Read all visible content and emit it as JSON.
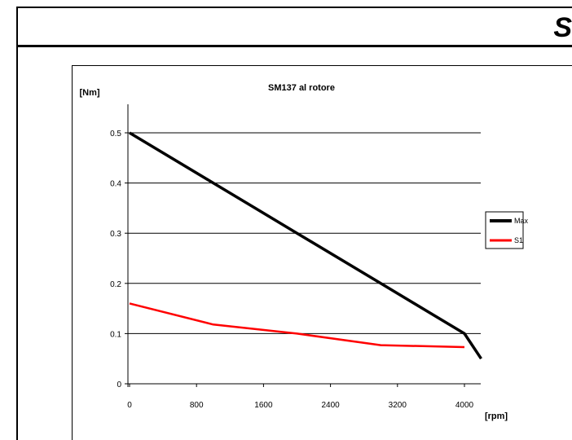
{
  "header": {
    "partial_title": "S"
  },
  "chart_data": {
    "type": "line",
    "title": "SM137 al rotore",
    "ylabel": "[Nm]",
    "xlabel": "[rpm]",
    "xlim": [
      0,
      4000
    ],
    "ylim": [
      0,
      0.5
    ],
    "x_ticks": [
      "0",
      "800",
      "1600",
      "2400",
      "3200",
      "4000"
    ],
    "y_ticks": [
      "0",
      "0.1",
      "0.2",
      "0.3",
      "0.4",
      "0.5"
    ],
    "grid": "horizontal",
    "legend_position": "right",
    "series": [
      {
        "name": "Max",
        "color": "#000000",
        "x": [
          0,
          1000,
          2000,
          3000,
          4000,
          4200
        ],
        "y": [
          0.5,
          0.4,
          0.3,
          0.2,
          0.1,
          0.05
        ]
      },
      {
        "name": "S1",
        "color": "#ff0000",
        "x": [
          0,
          1000,
          2000,
          3000,
          4000
        ],
        "y": [
          0.16,
          0.118,
          0.1,
          0.077,
          0.073
        ]
      }
    ]
  }
}
